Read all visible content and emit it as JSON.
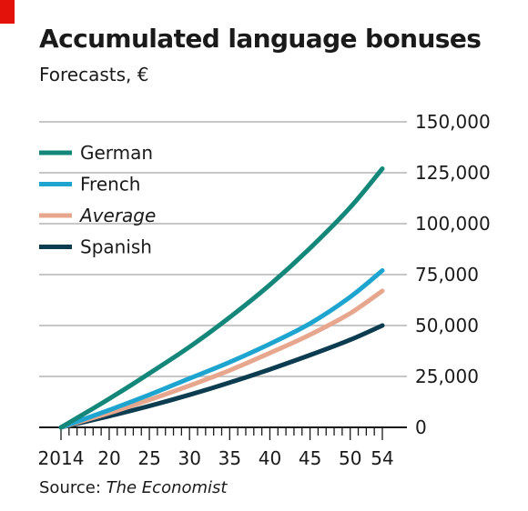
{
  "header": {
    "title": "Accumulated language bonuses",
    "subtitle": "Forecasts, €"
  },
  "footer": {
    "source_label": "Source: ",
    "source_name": "The Economist"
  },
  "colors": {
    "accent_tag": "#e3120b",
    "grid": "#c7c7c7",
    "axis": "#1a1a1a"
  },
  "chart_data": {
    "type": "line",
    "title": "Accumulated language bonuses",
    "subtitle": "Forecasts, €",
    "xlabel": "",
    "ylabel": "",
    "xlim": [
      2014,
      2054
    ],
    "ylim": [
      0,
      150000
    ],
    "x_ticks": [
      2014,
      2020,
      2025,
      2030,
      2035,
      2040,
      2045,
      2050,
      2054
    ],
    "x_tick_labels": [
      "2014",
      "20",
      "25",
      "30",
      "35",
      "40",
      "45",
      "50",
      "54"
    ],
    "y_ticks": [
      0,
      25000,
      50000,
      75000,
      100000,
      125000,
      150000
    ],
    "y_tick_labels": [
      "0",
      "25,000",
      "50,000",
      "75,000",
      "100,000",
      "125,000",
      "150,000"
    ],
    "y_axis_side": "right",
    "grid": true,
    "legend_position": "top-left",
    "x": [
      2014,
      2020,
      2025,
      2030,
      2035,
      2040,
      2045,
      2050,
      2054
    ],
    "series": [
      {
        "name": "German",
        "color": "#13877a",
        "italic": false,
        "values": [
          0,
          14000,
          26500,
          39500,
          54000,
          70000,
          88000,
          108000,
          127000
        ]
      },
      {
        "name": "French",
        "color": "#1ea5cf",
        "italic": false,
        "values": [
          0,
          8500,
          16000,
          24000,
          32000,
          41000,
          51000,
          64000,
          77000
        ]
      },
      {
        "name": "Average",
        "color": "#e7a78e",
        "italic": true,
        "values": [
          0,
          7000,
          13500,
          20500,
          28000,
          36500,
          45500,
          56000,
          67000
        ]
      },
      {
        "name": "Spanish",
        "color": "#0c3c50",
        "italic": false,
        "values": [
          0,
          5500,
          10500,
          16000,
          22000,
          28500,
          35500,
          43000,
          50000
        ]
      }
    ]
  }
}
